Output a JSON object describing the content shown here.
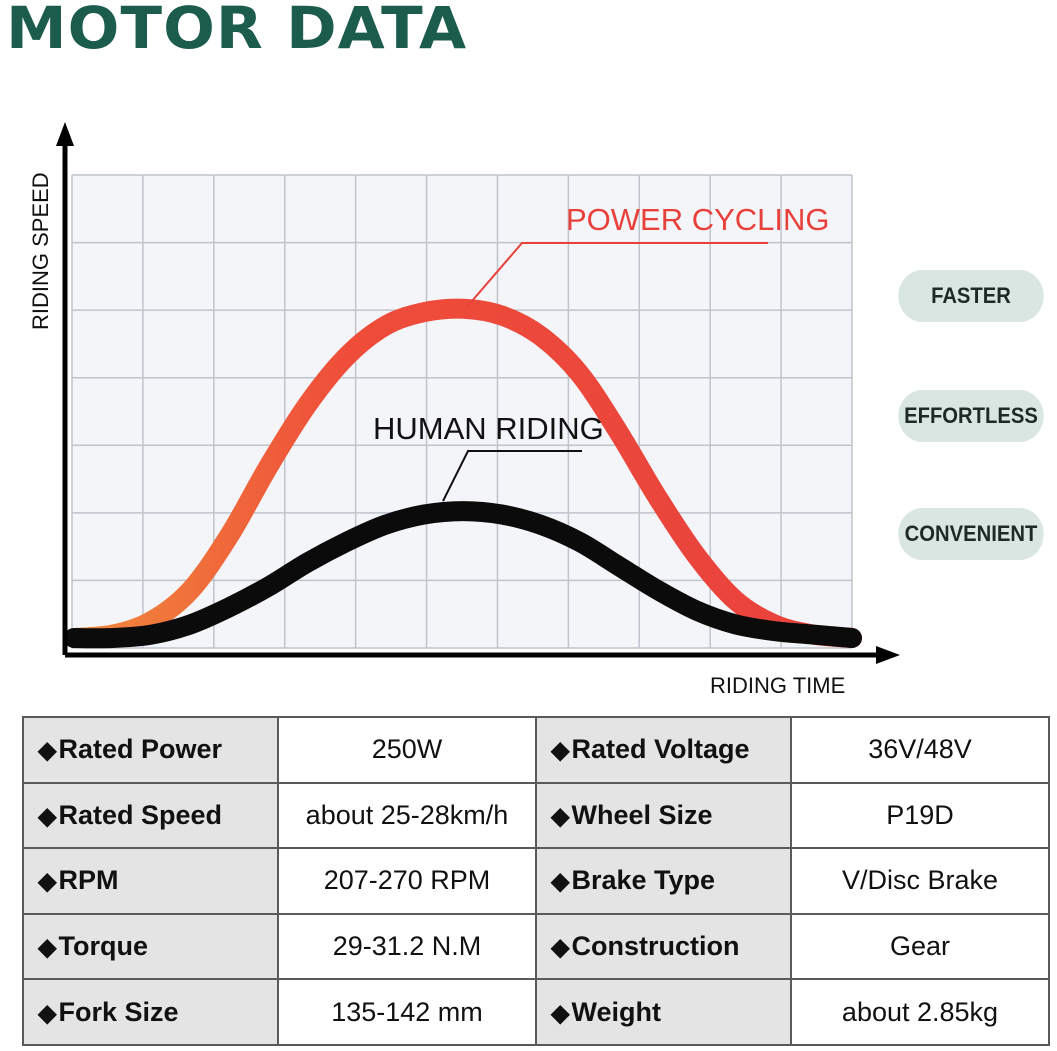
{
  "title": "MOTOR DATA",
  "chart_data": {
    "type": "line",
    "xlabel": "RIDING TIME",
    "ylabel": "RIDING SPEED",
    "x": [
      0,
      1,
      2,
      3,
      4,
      5,
      6,
      7,
      8,
      9,
      10,
      11,
      12,
      13,
      14,
      15,
      16,
      17,
      18,
      19,
      20
    ],
    "series": [
      {
        "name": "POWER CYCLING",
        "color": "#e8413c",
        "values": [
          0,
          1,
          5,
          14,
          30,
          50,
          68,
          82,
          91,
          95,
          96,
          94,
          88,
          77,
          60,
          41,
          24,
          11,
          4,
          1,
          0
        ]
      },
      {
        "name": "HUMAN RIDING",
        "color": "#0b0b0b",
        "values": [
          0,
          0,
          1,
          4,
          9,
          15,
          22,
          28,
          33,
          36,
          37,
          36,
          33,
          28,
          21,
          14,
          8,
          4,
          2,
          1,
          0
        ]
      }
    ],
    "grid": true
  },
  "features": [
    "FASTER",
    "EFFORTLESS",
    "CONVENIENT"
  ],
  "specs": [
    [
      {
        "label": "Rated Power",
        "value": "250W"
      },
      {
        "label": "Rated Voltage",
        "value": "36V/48V"
      }
    ],
    [
      {
        "label": "Rated Speed",
        "value": "about 25-28km/h"
      },
      {
        "label": "Wheel Size",
        "value": "P19D"
      }
    ],
    [
      {
        "label": "RPM",
        "value": "207-270 RPM"
      },
      {
        "label": "Brake Type",
        "value": "V/Disc Brake"
      }
    ],
    [
      {
        "label": "Torque",
        "value": "29-31.2 N.M"
      },
      {
        "label": "Construction",
        "value": "Gear"
      }
    ],
    [
      {
        "label": "Fork Size",
        "value": "135-142 mm"
      },
      {
        "label": "Weight",
        "value": "about 2.85kg"
      }
    ]
  ]
}
